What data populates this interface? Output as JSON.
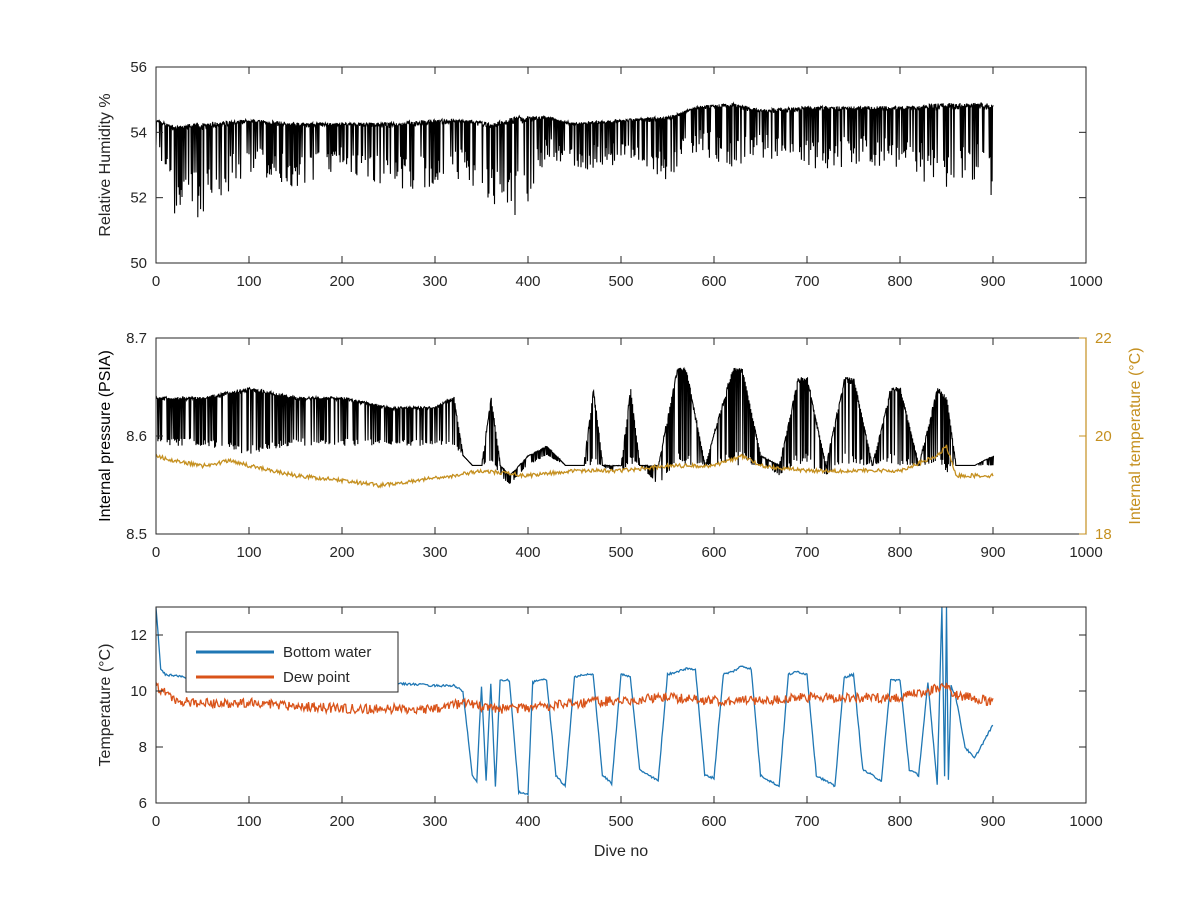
{
  "colors": {
    "axis": "#262626",
    "black_series": "#000000",
    "temp_axis": "#c59020",
    "bottom_water": "#1f77b4",
    "dew_point": "#d95319"
  },
  "chart_data": [
    {
      "type": "line",
      "xlabel": "",
      "ylabel": "Relative Humidity %",
      "xlim": [
        0,
        1000
      ],
      "ylim": [
        50,
        56
      ],
      "xticks": [
        "0",
        "100",
        "200",
        "300",
        "400",
        "500",
        "600",
        "700",
        "800",
        "900",
        "1000"
      ],
      "yticks": [
        "50",
        "52",
        "54",
        "56"
      ],
      "grid": false,
      "series": [
        {
          "color": "black",
          "style": "dense-spiky",
          "x": [
            0,
            20,
            50,
            100,
            150,
            200,
            250,
            300,
            330,
            360,
            390,
            420,
            450,
            500,
            550,
            580,
            620,
            650,
            700,
            750,
            800,
            850,
            870,
            900
          ],
          "upper": [
            54.4,
            54.2,
            54.3,
            54.4,
            54.3,
            54.3,
            54.3,
            54.4,
            54.4,
            54.3,
            54.5,
            54.5,
            54.3,
            54.4,
            54.5,
            54.8,
            54.9,
            54.7,
            54.8,
            54.8,
            54.8,
            54.9,
            54.9,
            54.9
          ],
          "lower": [
            53.5,
            51.4,
            51.4,
            52.8,
            52.3,
            52.9,
            52.2,
            52.3,
            52.6,
            51.8,
            51.1,
            53.2,
            52.8,
            53.0,
            52.5,
            53.4,
            52.9,
            53.2,
            52.7,
            53.0,
            52.9,
            52.1,
            52.7,
            52.0
          ]
        }
      ]
    },
    {
      "type": "line",
      "xlabel": "",
      "ylabel": "Internal pressure (PSIA)",
      "y2label": "Internal temperature (°C)",
      "xlim": [
        0,
        1000
      ],
      "ylim": [
        8.5,
        8.7
      ],
      "y2lim": [
        18,
        22
      ],
      "xticks": [
        "0",
        "100",
        "200",
        "300",
        "400",
        "500",
        "600",
        "700",
        "800",
        "900",
        "1000"
      ],
      "yticks": [
        "8.5",
        "8.6",
        "8.7"
      ],
      "y2ticks": [
        "18",
        "20",
        "22"
      ],
      "grid": false,
      "series": [
        {
          "color": "black",
          "axis": "left",
          "x": [
            0,
            50,
            100,
            150,
            200,
            250,
            300,
            320,
            330,
            340,
            350,
            360,
            370,
            380,
            400,
            420,
            440,
            460,
            470,
            480,
            500,
            510,
            520,
            540,
            560,
            570,
            590,
            620,
            630,
            650,
            670,
            690,
            700,
            720,
            740,
            750,
            770,
            790,
            800,
            820,
            840,
            850,
            860,
            880,
            900
          ],
          "upper": [
            8.64,
            8.64,
            8.65,
            8.64,
            8.64,
            8.63,
            8.63,
            8.64,
            8.58,
            8.57,
            8.57,
            8.64,
            8.57,
            8.56,
            8.58,
            8.59,
            8.57,
            8.57,
            8.65,
            8.57,
            8.57,
            8.65,
            8.57,
            8.57,
            8.67,
            8.67,
            8.57,
            8.67,
            8.67,
            8.58,
            8.57,
            8.66,
            8.66,
            8.57,
            8.66,
            8.66,
            8.57,
            8.65,
            8.65,
            8.57,
            8.65,
            8.64,
            8.57,
            8.57,
            8.58
          ],
          "lower": [
            8.59,
            8.59,
            8.58,
            8.59,
            8.59,
            8.59,
            8.59,
            8.59,
            8.58,
            8.57,
            8.57,
            8.57,
            8.56,
            8.55,
            8.57,
            8.58,
            8.57,
            8.57,
            8.57,
            8.57,
            8.56,
            8.57,
            8.57,
            8.55,
            8.57,
            8.57,
            8.57,
            8.57,
            8.57,
            8.57,
            8.56,
            8.57,
            8.57,
            8.56,
            8.57,
            8.57,
            8.57,
            8.57,
            8.57,
            8.57,
            8.57,
            8.56,
            8.57,
            8.57,
            8.57
          ]
        },
        {
          "color": "gold",
          "axis": "right",
          "x": [
            0,
            20,
            50,
            80,
            100,
            150,
            200,
            240,
            280,
            320,
            350,
            400,
            450,
            500,
            550,
            600,
            630,
            650,
            700,
            750,
            800,
            840,
            850,
            860,
            880,
            900
          ],
          "y": [
            19.6,
            19.5,
            19.4,
            19.5,
            19.4,
            19.2,
            19.1,
            19.0,
            19.1,
            19.2,
            19.3,
            19.2,
            19.3,
            19.3,
            19.4,
            19.4,
            19.6,
            19.4,
            19.3,
            19.3,
            19.3,
            19.6,
            19.8,
            19.2,
            19.2,
            19.2
          ]
        }
      ]
    },
    {
      "type": "line",
      "xlabel": "Dive no",
      "ylabel": "Temperature (°C)",
      "xlim": [
        0,
        1000
      ],
      "ylim": [
        6,
        13
      ],
      "xticks": [
        "0",
        "100",
        "200",
        "300",
        "400",
        "500",
        "600",
        "700",
        "800",
        "900",
        "1000"
      ],
      "yticks": [
        "6",
        "8",
        "10",
        "12"
      ],
      "grid": false,
      "legend": "top-left",
      "series": [
        {
          "name": "Bottom water",
          "color": "blue",
          "x": [
            0,
            5,
            10,
            30,
            60,
            100,
            150,
            200,
            250,
            300,
            320,
            330,
            340,
            345,
            350,
            355,
            360,
            365,
            370,
            380,
            390,
            400,
            405,
            410,
            420,
            430,
            440,
            450,
            460,
            470,
            480,
            490,
            500,
            510,
            520,
            530,
            540,
            550,
            560,
            570,
            580,
            590,
            600,
            610,
            620,
            630,
            640,
            650,
            660,
            670,
            680,
            690,
            700,
            710,
            720,
            730,
            740,
            750,
            760,
            770,
            780,
            790,
            800,
            810,
            820,
            830,
            840,
            845,
            848,
            850,
            852,
            855,
            860,
            870,
            880,
            890,
            900
          ],
          "y": [
            13.0,
            10.8,
            10.6,
            10.5,
            10.4,
            10.4,
            10.4,
            10.3,
            10.3,
            10.2,
            10.2,
            10.0,
            7.0,
            6.8,
            10.2,
            6.8,
            10.3,
            6.6,
            10.4,
            10.4,
            6.4,
            6.3,
            10.3,
            10.4,
            10.4,
            7.0,
            6.6,
            10.5,
            10.6,
            10.6,
            7.0,
            6.7,
            10.6,
            10.5,
            7.2,
            7.0,
            6.8,
            10.6,
            10.7,
            10.8,
            10.8,
            7.0,
            6.9,
            10.6,
            10.7,
            10.9,
            10.8,
            7.0,
            6.8,
            6.6,
            10.6,
            10.7,
            10.6,
            7.0,
            6.8,
            6.6,
            10.5,
            10.6,
            7.2,
            7.0,
            6.8,
            10.4,
            10.4,
            7.2,
            7.0,
            10.3,
            6.7,
            13.0,
            7.0,
            13.0,
            6.8,
            10.2,
            9.8,
            8.0,
            7.6,
            8.2,
            8.8
          ]
        },
        {
          "name": "Dew point",
          "color": "orange",
          "x": [
            0,
            20,
            50,
            100,
            150,
            200,
            250,
            300,
            330,
            360,
            390,
            420,
            450,
            500,
            550,
            600,
            650,
            700,
            750,
            800,
            850,
            860,
            880,
            900
          ],
          "y": [
            10.2,
            9.7,
            9.6,
            9.6,
            9.5,
            9.4,
            9.4,
            9.4,
            9.6,
            9.4,
            9.4,
            9.5,
            9.6,
            9.7,
            9.8,
            9.7,
            9.7,
            9.8,
            9.8,
            9.8,
            10.2,
            9.9,
            9.8,
            9.6
          ]
        }
      ]
    }
  ]
}
